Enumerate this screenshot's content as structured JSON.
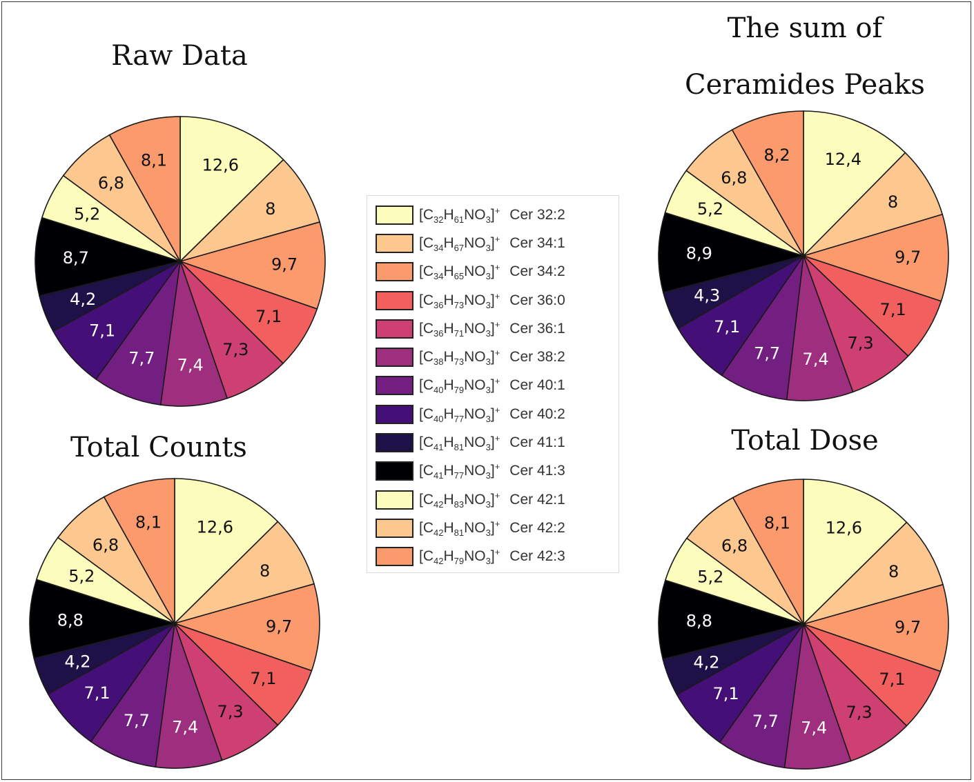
{
  "colors": [
    "#fcfcbd",
    "#fdc88f",
    "#fb9b6d",
    "#f1605e",
    "#cd4071",
    "#9e2e7e",
    "#721f81",
    "#440f76",
    "#1d1147",
    "#000004",
    "#fcfcbd",
    "#fdc88f",
    "#fb9b6d"
  ],
  "legend": [
    {
      "formula": "[C32H61NO3]+",
      "C": "32",
      "H": "61",
      "sup": "+",
      "cer": "Cer 32:2"
    },
    {
      "formula": "[C34H67NO3]+",
      "C": "34",
      "H": "67",
      "sup": "+",
      "cer": "Cer 34:1"
    },
    {
      "formula": "[C34H65NO3]+",
      "C": "34",
      "H": "65",
      "sup": "+",
      "cer": "Cer 34:2"
    },
    {
      "formula": "[C36H73NO3]+",
      "C": "36",
      "H": "73",
      "sup": "+",
      "cer": "Cer 36:0"
    },
    {
      "formula": "[C36H71NO3]+",
      "C": "36",
      "H": "71",
      "sup": "+",
      "cer": "Cer 36:1"
    },
    {
      "formula": "[C38H73NO3]+",
      "C": "38",
      "H": "73",
      "sup": "+",
      "cer": "Cer 38:2"
    },
    {
      "formula": "[C40H79NO3]+",
      "C": "40",
      "H": "79",
      "sup": "+",
      "cer": "Cer 40:1"
    },
    {
      "formula": "[C40H77NO3]+",
      "C": "40",
      "H": "77",
      "sup": "+",
      "cer": "Cer 40:2"
    },
    {
      "formula": "[C41H81NO3]+",
      "C": "41",
      "H": "81",
      "sup": "+",
      "cer": "Cer 41:1"
    },
    {
      "formula": "[C41H77NO3]+",
      "C": "41",
      "H": "77",
      "sup": "+",
      "cer": "Cer 41:3"
    },
    {
      "formula": "[C42H83NO3]+",
      "C": "42",
      "H": "83",
      "sup": "+",
      "cer": "Cer 42:1"
    },
    {
      "formula": "[C42H81NO3]+",
      "C": "42",
      "H": "81",
      "sup": "+",
      "cer": "Cer 42:2"
    },
    {
      "formula": "[C42H79NO3]+",
      "C": "42",
      "H": "79",
      "sup": "+",
      "cer": "Cer 42:3"
    }
  ],
  "chart_data": [
    {
      "type": "pie",
      "title": "Raw Data",
      "categories": [
        "Cer 32:2",
        "Cer 34:1",
        "Cer 34:2",
        "Cer 36:0",
        "Cer 36:1",
        "Cer 38:2",
        "Cer 40:1",
        "Cer 40:2",
        "Cer 41:1",
        "Cer 41:3",
        "Cer 42:1",
        "Cer 42:2",
        "Cer 42:3"
      ],
      "values": [
        12.6,
        8,
        9.7,
        7.1,
        7.3,
        7.4,
        7.7,
        7.1,
        4.2,
        8.7,
        5.2,
        6.8,
        8.1
      ],
      "labels": [
        "12,6",
        "8",
        "9,7",
        "7,1",
        "7,3",
        "7,4",
        "7,7",
        "7,1",
        "4,2",
        "8,7",
        "5,2",
        "6,8",
        "8,1"
      ]
    },
    {
      "type": "pie",
      "title_lines": [
        "The sum of",
        "Ceramides Peaks"
      ],
      "categories": [
        "Cer 32:2",
        "Cer 34:1",
        "Cer 34:2",
        "Cer 36:0",
        "Cer 36:1",
        "Cer 38:2",
        "Cer 40:1",
        "Cer 40:2",
        "Cer 41:1",
        "Cer 41:3",
        "Cer 42:1",
        "Cer 42:2",
        "Cer 42:3"
      ],
      "values": [
        12.4,
        8,
        9.7,
        7.1,
        7.3,
        7.4,
        7.7,
        7.1,
        4.3,
        8.9,
        5.2,
        6.8,
        8.2
      ],
      "labels": [
        "12,4",
        "8",
        "9,7",
        "7,1",
        "7,3",
        "7,4",
        "7,7",
        "7,1",
        "4,3",
        "8,9",
        "5,2",
        "6,8",
        "8,2"
      ]
    },
    {
      "type": "pie",
      "title": "Total Counts",
      "categories": [
        "Cer 32:2",
        "Cer 34:1",
        "Cer 34:2",
        "Cer 36:0",
        "Cer 36:1",
        "Cer 38:2",
        "Cer 40:1",
        "Cer 40:2",
        "Cer 41:1",
        "Cer 41:3",
        "Cer 42:1",
        "Cer 42:2",
        "Cer 42:3"
      ],
      "values": [
        12.6,
        8,
        9.7,
        7.1,
        7.3,
        7.4,
        7.7,
        7.1,
        4.2,
        8.8,
        5.2,
        6.8,
        8.1
      ],
      "labels": [
        "12,6",
        "8",
        "9,7",
        "7,1",
        "7,3",
        "7,4",
        "7,7",
        "7,1",
        "4,2",
        "8,8",
        "5,2",
        "6,8",
        "8,1"
      ]
    },
    {
      "type": "pie",
      "title": "Total Dose",
      "categories": [
        "Cer 32:2",
        "Cer 34:1",
        "Cer 34:2",
        "Cer 36:0",
        "Cer 36:1",
        "Cer 38:2",
        "Cer 40:1",
        "Cer 40:2",
        "Cer 41:1",
        "Cer 41:3",
        "Cer 42:1",
        "Cer 42:2",
        "Cer 42:3"
      ],
      "values": [
        12.6,
        8,
        9.7,
        7.1,
        7.3,
        7.4,
        7.7,
        7.1,
        4.2,
        8.8,
        5.2,
        6.8,
        8.1
      ],
      "labels": [
        "12,6",
        "8",
        "9,7",
        "7,1",
        "7,3",
        "7,4",
        "7,7",
        "7,1",
        "4,2",
        "8,8",
        "5,2",
        "6,8",
        "8,1"
      ]
    }
  ]
}
